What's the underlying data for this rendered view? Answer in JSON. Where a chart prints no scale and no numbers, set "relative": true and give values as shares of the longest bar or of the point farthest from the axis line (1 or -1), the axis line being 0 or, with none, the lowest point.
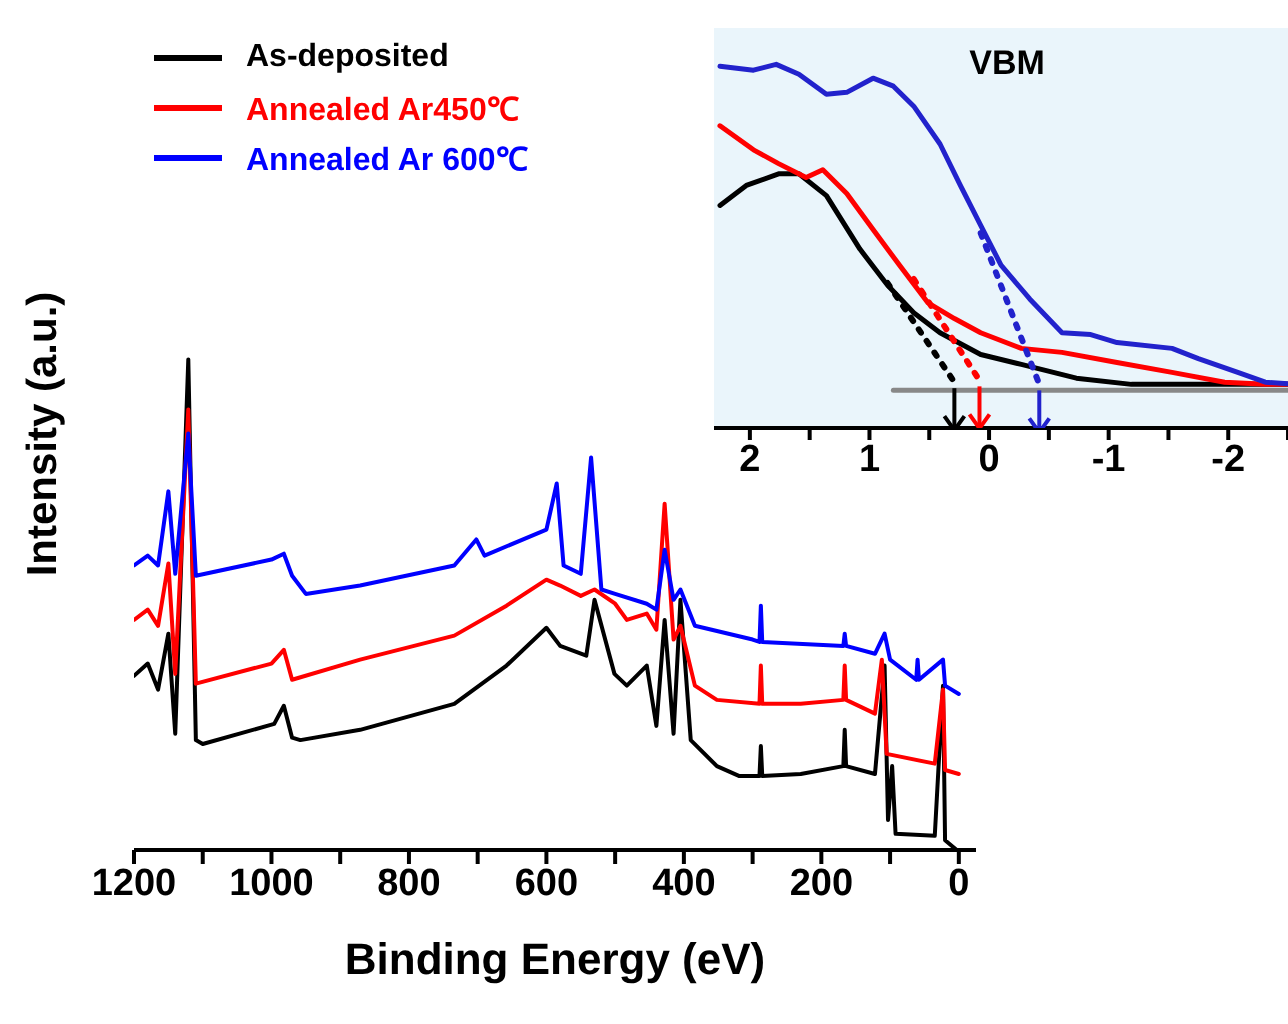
{
  "chart_data": [
    {
      "type": "line",
      "xlabel": "Binding Energy (eV)",
      "ylabel": "Intensity (a.u.)",
      "relative": true,
      "legend": "top left",
      "marker": "none",
      "line_style": "solid",
      "xlim": [
        1200,
        -25
      ],
      "xticks": [
        1200,
        {
          "value": 1100,
          "label": null
        },
        1000,
        {
          "value": 900,
          "label": null
        },
        800,
        {
          "value": 700,
          "label": null
        },
        600,
        {
          "value": 500,
          "label": null
        },
        400,
        {
          "value": 300,
          "label": null
        },
        200,
        {
          "value": 100,
          "label": null
        },
        0
      ],
      "series": [
        {
          "name": "As-deposited",
          "color": "#000000",
          "x": [
            1200,
            1180,
            1165,
            1150,
            1140,
            1121,
            1110,
            1100,
            996,
            982,
            970,
            958,
            871,
            734,
            658,
            600,
            580,
            542,
            530,
            501,
            483,
            454,
            440,
            428,
            415,
            405,
            390,
            352,
            320,
            290,
            288,
            286,
            230,
            168,
            166,
            164,
            122,
            108,
            103,
            97,
            92,
            35,
            23,
            20,
            3
          ],
          "values": [
            0.355,
            0.38,
            0.327,
            0.441,
            0.237,
            1,
            0.224,
            0.216,
            0.257,
            0.294,
            0.229,
            0.224,
            0.245,
            0.298,
            0.376,
            0.453,
            0.416,
            0.396,
            0.51,
            0.359,
            0.335,
            0.376,
            0.253,
            0.469,
            0.237,
            0.51,
            0.224,
            0.171,
            0.151,
            0.151,
            0.212,
            0.151,
            0.155,
            0.171,
            0.245,
            0.171,
            0.155,
            0.376,
            0.061,
            0.171,
            0.033,
            0.029,
            0.335,
            0.02,
            0
          ]
        },
        {
          "name": "Annealed Ar450℃",
          "color": "#ff0000",
          "x": [
            1200,
            1180,
            1165,
            1150,
            1140,
            1121,
            1110,
            1000,
            982,
            970,
            871,
            734,
            658,
            600,
            580,
            550,
            530,
            500,
            483,
            454,
            440,
            428,
            415,
            405,
            384,
            352,
            290,
            288,
            286,
            230,
            168,
            166,
            164,
            122,
            112,
            105,
            35,
            23,
            20,
            0
          ],
          "values": [
            0.469,
            0.49,
            0.457,
            0.584,
            0.359,
            0.898,
            0.339,
            0.38,
            0.408,
            0.347,
            0.388,
            0.437,
            0.498,
            0.551,
            0.539,
            0.518,
            0.531,
            0.502,
            0.469,
            0.482,
            0.449,
            0.706,
            0.429,
            0.457,
            0.335,
            0.306,
            0.298,
            0.376,
            0.298,
            0.298,
            0.306,
            0.376,
            0.306,
            0.278,
            0.388,
            0.196,
            0.176,
            0.327,
            0.163,
            0.155
          ]
        },
        {
          "name": "Annealed Ar 600℃",
          "color": "#0000ff",
          "x": [
            1200,
            1180,
            1165,
            1150,
            1140,
            1121,
            1110,
            1000,
            982,
            970,
            950,
            871,
            734,
            702,
            690,
            600,
            585,
            575,
            550,
            535,
            520,
            500,
            454,
            440,
            428,
            415,
            405,
            384,
            300,
            290,
            288,
            286,
            168,
            166,
            164,
            122,
            108,
            100,
            62,
            60,
            58,
            23,
            20,
            0
          ],
          "values": [
            0.58,
            0.6,
            0.58,
            0.731,
            0.563,
            0.849,
            0.559,
            0.592,
            0.604,
            0.559,
            0.522,
            0.539,
            0.58,
            0.633,
            0.6,
            0.653,
            0.747,
            0.58,
            0.563,
            0.8,
            0.531,
            0.522,
            0.502,
            0.49,
            0.612,
            0.51,
            0.531,
            0.457,
            0.429,
            0.424,
            0.498,
            0.424,
            0.416,
            0.441,
            0.416,
            0.4,
            0.441,
            0.388,
            0.347,
            0.388,
            0.347,
            0.388,
            0.335,
            0.318
          ]
        }
      ]
    },
    {
      "type": "line",
      "title": "VBM",
      "relative": true,
      "legend": false,
      "marker": "none",
      "xlim": [
        2.3,
        -2.6
      ],
      "xticks": [
        2,
        {
          "value": 1.5,
          "label": null
        },
        1,
        {
          "value": 0.5,
          "label": null
        },
        0,
        {
          "value": -0.5,
          "label": null
        },
        -1,
        {
          "value": -1.5,
          "label": null
        },
        -2,
        {
          "value": -2.5,
          "label": null
        }
      ],
      "series": [
        {
          "color": "#000000",
          "line_style": "solid",
          "x": [
            2.25,
            2.03,
            1.76,
            1.59,
            1.36,
            1.08,
            0.85,
            0.63,
            0.41,
            0.07,
            -0.27,
            -0.73,
            -1.19,
            -2.58
          ],
          "values": [
            0.612,
            0.667,
            0.699,
            0.699,
            0.639,
            0.492,
            0.393,
            0.317,
            0.262,
            0.202,
            0.175,
            0.137,
            0.12,
            0.12
          ]
        },
        {
          "color": "#ff0000",
          "line_style": "solid",
          "x": [
            2.25,
            1.97,
            1.76,
            1.53,
            1.39,
            1.19,
            0.97,
            0.75,
            0.51,
            0.29,
            0.07,
            -0.27,
            -0.61,
            -1.07,
            -1.53,
            -1.97,
            -2.31,
            -2.58
          ],
          "values": [
            0.831,
            0.765,
            0.727,
            0.689,
            0.71,
            0.645,
            0.546,
            0.448,
            0.344,
            0.301,
            0.262,
            0.219,
            0.208,
            0.18,
            0.153,
            0.126,
            0.12,
            0.12
          ]
        },
        {
          "color": "#2222cc",
          "line_style": "solid",
          "x": [
            2.25,
            1.97,
            1.78,
            1.59,
            1.36,
            1.19,
            0.97,
            0.8,
            0.63,
            0.41,
            0.24,
            0.07,
            -0.1,
            -0.34,
            -0.61,
            -0.85,
            -1.07,
            -1.53,
            -1.75,
            -2.08,
            -2.31,
            -2.58
          ],
          "values": [
            0.995,
            0.984,
            1,
            0.973,
            0.918,
            0.923,
            0.962,
            0.94,
            0.885,
            0.781,
            0.667,
            0.557,
            0.448,
            0.355,
            0.262,
            0.257,
            0.235,
            0.219,
            0.191,
            0.153,
            0.126,
            0.12
          ]
        },
        {
          "color": "#000000",
          "line_style": "dotted",
          "x": [
            0.85,
            0.29
          ],
          "values": [
            0.399,
            0.126
          ]
        },
        {
          "color": "#ff0000",
          "line_style": "dotted",
          "x": [
            0.63,
            0.08
          ],
          "values": [
            0.41,
            0.131
          ]
        },
        {
          "color": "#2222cc",
          "line_style": "dotted",
          "x": [
            0.07,
            -0.42
          ],
          "values": [
            0.536,
            0.12
          ]
        },
        {
          "color": "#888888",
          "line_style": "solid",
          "x": [
            0.8,
            -2.6
          ],
          "values": [
            0.104,
            0.104
          ]
        }
      ]
    }
  ]
}
